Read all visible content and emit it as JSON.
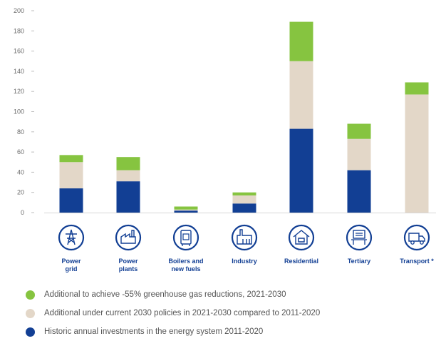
{
  "chart_data": {
    "type": "bar",
    "stacked": true,
    "categories": [
      "Power grid",
      "Power plants",
      "Boilers and new fuels",
      "Industry",
      "Residential",
      "Tertiary",
      "Transport *"
    ],
    "category_lines": [
      [
        "Power",
        "grid"
      ],
      [
        "Power",
        "plants"
      ],
      [
        "Boilers and",
        "new fuels"
      ],
      [
        "Industry"
      ],
      [
        "Residential"
      ],
      [
        "Tertiary"
      ],
      [
        "Transport *"
      ]
    ],
    "category_icons": [
      "pylon-icon",
      "power-plant-icon",
      "boiler-icon",
      "factory-icon",
      "house-icon",
      "office-building-icon",
      "truck-icon"
    ],
    "series": [
      {
        "name": "Historic annual investments in the energy system 2011-2020",
        "color": "#123f94",
        "values": [
          24,
          31,
          2,
          9,
          83,
          42,
          0
        ]
      },
      {
        "name": "Additional under current 2030 policies in 2021-2030 compared to 2011-2020",
        "color": "#e3d7c8",
        "values": [
          26,
          11,
          1,
          8,
          67,
          31,
          117
        ]
      },
      {
        "name": "Additional to achieve -55% greenhouse gas reductions, 2021-2030",
        "color": "#86c440",
        "values": [
          7,
          13,
          3,
          3,
          39,
          15,
          12
        ]
      }
    ],
    "yticks": [
      0,
      20,
      40,
      60,
      80,
      100,
      120,
      140,
      160,
      180,
      200
    ],
    "ylim": [
      0,
      200
    ],
    "grid": false,
    "legend_order": [
      2,
      1,
      0
    ],
    "legend_position": "bottom"
  }
}
